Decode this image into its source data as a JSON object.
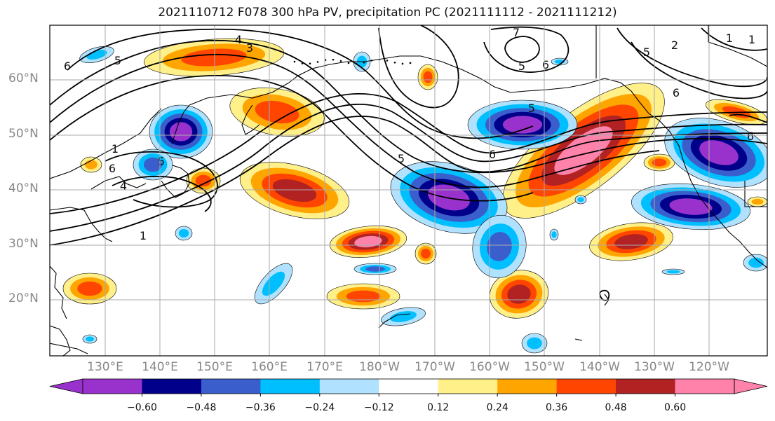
{
  "title": "2021110712 F078 300 hPa PV, precipitation PC (2021111112 - 2021111212)",
  "map": {
    "lat_labels": [
      "60°N",
      "50°N",
      "40°N",
      "30°N",
      "20°N"
    ],
    "lon_labels": [
      "130°E",
      "140°E",
      "150°E",
      "160°E",
      "170°E",
      "180°W",
      "170°W",
      "160°W",
      "150°W",
      "140°W",
      "130°W",
      "120°W"
    ],
    "contour_labels": [
      "4",
      "3",
      "5",
      "6",
      "7",
      "5",
      "6",
      "5",
      "6",
      "5",
      "6",
      "5",
      "6",
      "4",
      "1",
      "1",
      "6",
      "5",
      "2",
      "1",
      "1"
    ],
    "gridlines": true,
    "colors": {
      "land_outline": "#000000",
      "pv_contour": "#000000",
      "grid": "#aaaaaa"
    }
  },
  "colorbar": {
    "tick_labels": [
      "−0.60",
      "−0.48",
      "−0.36",
      "−0.24",
      "−0.12",
      "0.12",
      "0.24",
      "0.36",
      "0.48",
      "0.60"
    ],
    "colors": [
      "#9932cc",
      "#00008b",
      "#3a5fcd",
      "#00bfff",
      "#b0e2ff",
      "#ffffff",
      "#fff08a",
      "#ffa500",
      "#ff4500",
      "#b22222",
      "#ff82ab"
    ],
    "extend": "both"
  }
}
